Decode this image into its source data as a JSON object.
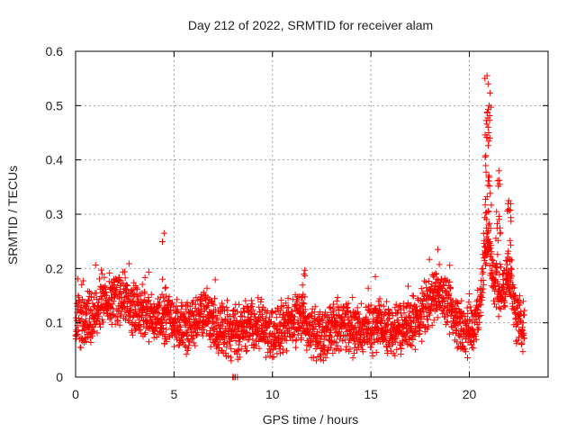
{
  "chart_data": {
    "type": "scatter",
    "title": "Day 212 of 2022, SRMTID for receiver alam",
    "xlabel": "GPS time / hours",
    "ylabel": "SRMTID / TECUs",
    "xlim": [
      0,
      24
    ],
    "ylim": [
      0,
      0.6
    ],
    "xticks": [
      0,
      5,
      10,
      15,
      20
    ],
    "yticks": [
      0,
      0.1,
      0.2,
      0.3,
      0.4,
      0.5,
      0.6
    ],
    "xtick_labels": [
      "0",
      "5",
      "10",
      "15",
      "20"
    ],
    "ytick_labels": [
      "0",
      "0.1",
      "0.2",
      "0.3",
      "0.4",
      "0.5",
      "0.6"
    ],
    "grid": true,
    "marker": "+",
    "series_color": "#ff0000",
    "x_extent": [
      0,
      22.8
    ],
    "profile": [
      [
        0.0,
        0.11
      ],
      [
        0.5,
        0.1
      ],
      [
        1.0,
        0.12
      ],
      [
        1.5,
        0.14
      ],
      [
        2.0,
        0.15
      ],
      [
        2.5,
        0.14
      ],
      [
        3.0,
        0.13
      ],
      [
        3.5,
        0.12
      ],
      [
        4.0,
        0.1
      ],
      [
        4.5,
        0.11
      ],
      [
        5.0,
        0.1
      ],
      [
        5.5,
        0.09
      ],
      [
        6.0,
        0.1
      ],
      [
        6.5,
        0.12
      ],
      [
        7.0,
        0.1
      ],
      [
        7.5,
        0.08
      ],
      [
        8.0,
        0.08
      ],
      [
        8.5,
        0.09
      ],
      [
        9.0,
        0.1
      ],
      [
        9.5,
        0.09
      ],
      [
        10.0,
        0.08
      ],
      [
        10.5,
        0.09
      ],
      [
        11.0,
        0.1
      ],
      [
        11.5,
        0.11
      ],
      [
        12.0,
        0.08
      ],
      [
        12.5,
        0.08
      ],
      [
        13.0,
        0.09
      ],
      [
        13.5,
        0.1
      ],
      [
        14.0,
        0.09
      ],
      [
        14.5,
        0.08
      ],
      [
        15.0,
        0.09
      ],
      [
        15.5,
        0.1
      ],
      [
        16.0,
        0.08
      ],
      [
        16.5,
        0.09
      ],
      [
        17.0,
        0.1
      ],
      [
        17.5,
        0.11
      ],
      [
        18.0,
        0.14
      ],
      [
        18.5,
        0.16
      ],
      [
        19.0,
        0.12
      ],
      [
        19.5,
        0.09
      ],
      [
        20.0,
        0.08
      ],
      [
        20.5,
        0.12
      ],
      [
        20.9,
        0.26
      ],
      [
        21.3,
        0.17
      ],
      [
        21.7,
        0.15
      ],
      [
        22.0,
        0.2
      ],
      [
        22.3,
        0.12
      ],
      [
        22.8,
        0.09
      ]
    ],
    "peaks": [
      {
        "x": 4.5,
        "y": 0.265
      },
      {
        "x": 11.6,
        "y": 0.19
      },
      {
        "x": 18.4,
        "y": 0.235
      },
      {
        "x": 20.9,
        "y": 0.555
      },
      {
        "x": 20.95,
        "y": 0.54
      },
      {
        "x": 21.0,
        "y": 0.5
      },
      {
        "x": 21.5,
        "y": 0.38
      },
      {
        "x": 22.0,
        "y": 0.325
      },
      {
        "x": 8.1,
        "y": 0.0
      }
    ]
  }
}
